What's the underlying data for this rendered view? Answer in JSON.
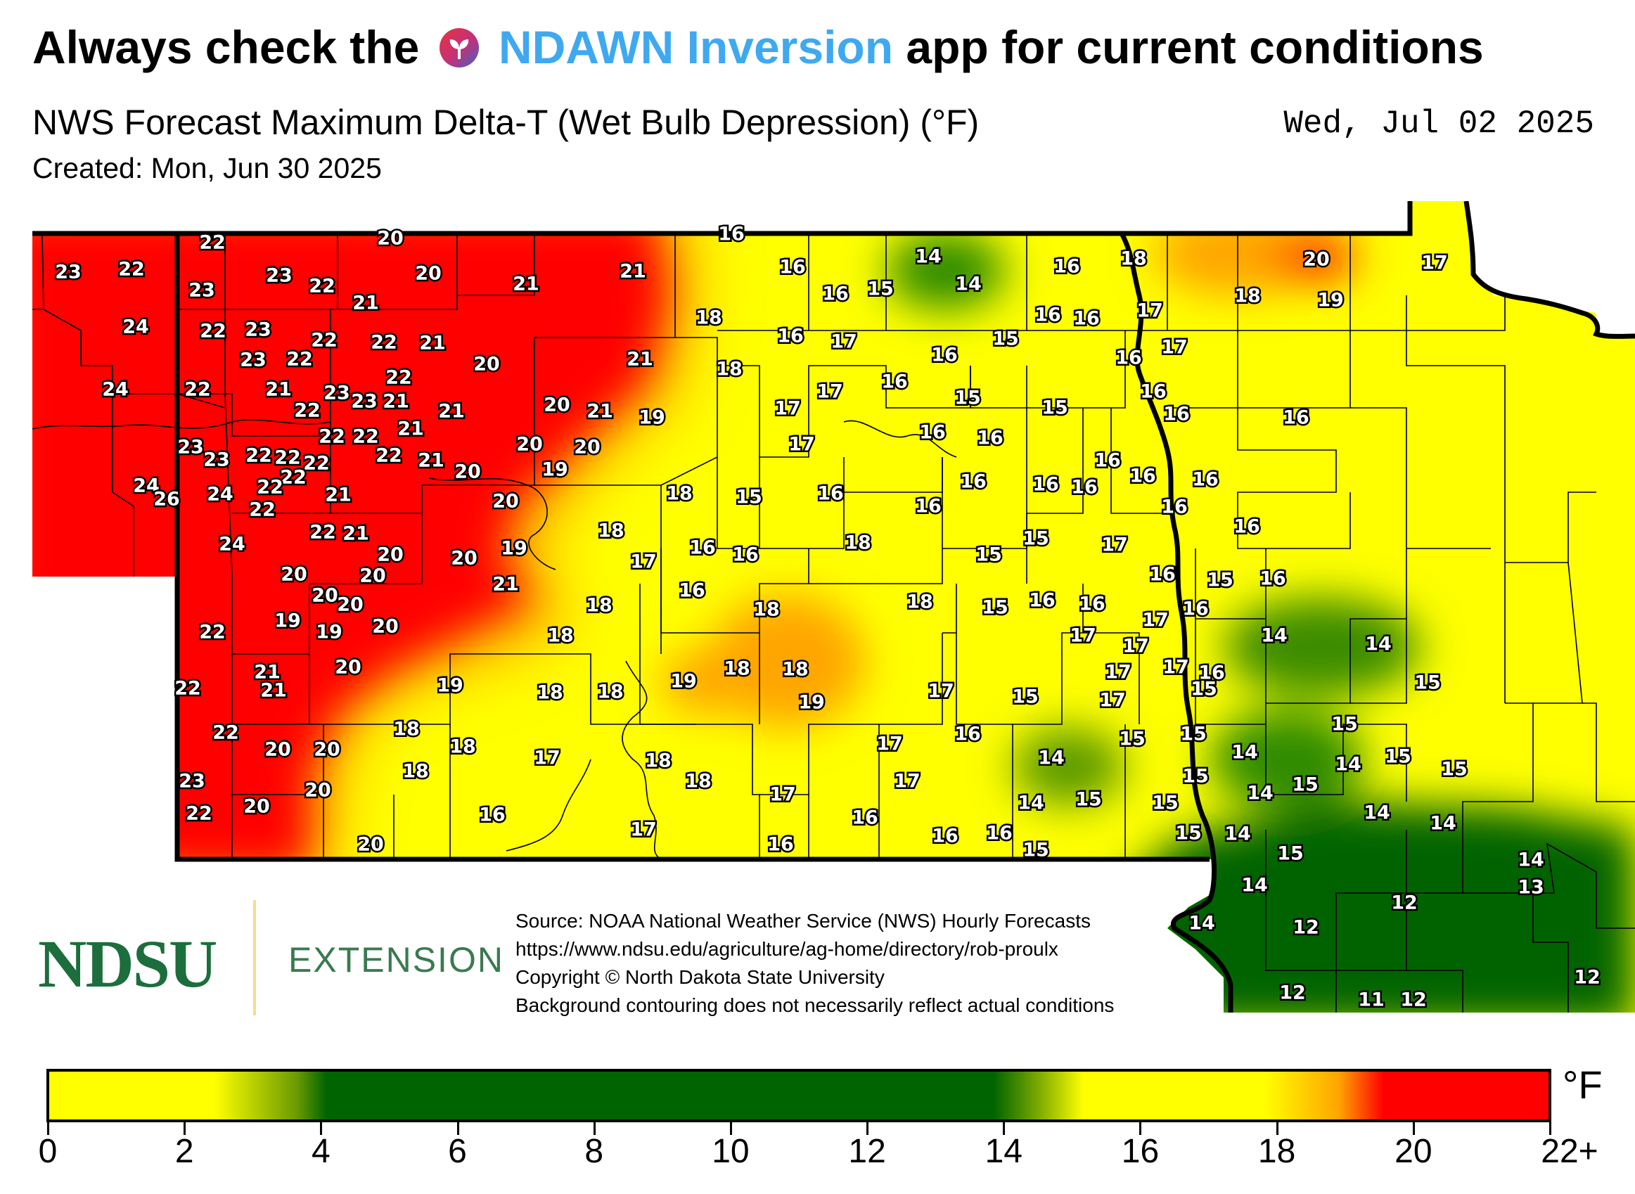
{
  "header": {
    "headline_before": "Always check the",
    "headline_app": "NDAWN Inversion",
    "headline_after": "app for current conditions",
    "app_icon": "sprout-icon",
    "app_color": "#3fa9f0",
    "subtitle": "NWS Forecast Maximum Delta-T (Wet Bulb Depression) (°F)",
    "valid_date": "Wed, Jul 02 2025",
    "created": "Created: Mon, Jun 30 2025"
  },
  "branding": {
    "logo_name": "NDSU",
    "logo_unit": "EXTENSION",
    "logo_color": "#1c6e3c"
  },
  "source_notes": [
    "Source: NOAA National Weather Service (NWS) Hourly Forecasts",
    "https://www.ndsu.edu/agriculture/ag-home/directory/rob-proulx",
    "Copyright © North Dakota State University",
    "Background contouring does not necessarily reflect actual conditions"
  ],
  "legend": {
    "unit": "°F",
    "ticks": [
      "0",
      "2",
      "4",
      "6",
      "8",
      "10",
      "12",
      "14",
      "16",
      "18",
      "20",
      "22+"
    ],
    "colors": {
      "low": "#ffff00",
      "mid": "#006400",
      "high": "#ff0000",
      "transition": "#ffa500"
    }
  },
  "map_labels": [
    [
      "23",
      97,
      388
    ],
    [
      "22",
      187,
      384
    ],
    [
      "22",
      302,
      346
    ],
    [
      "20",
      555,
      340
    ],
    [
      "16",
      1040,
      334
    ],
    [
      "23",
      287,
      414
    ],
    [
      "23",
      397,
      393
    ],
    [
      "22",
      458,
      408
    ],
    [
      "20",
      609,
      390
    ],
    [
      "21",
      748,
      405
    ],
    [
      "21",
      900,
      387
    ],
    [
      "14",
      1320,
      366
    ],
    [
      "16",
      1127,
      381
    ],
    [
      "16",
      1188,
      419
    ],
    [
      "15",
      1252,
      412
    ],
    [
      "14",
      1377,
      405
    ],
    [
      "18",
      1612,
      369
    ],
    [
      "16",
      1517,
      380
    ],
    [
      "20",
      1872,
      370
    ],
    [
      "17",
      2040,
      375
    ],
    [
      "24",
      193,
      466
    ],
    [
      "22",
      303,
      472
    ],
    [
      "23",
      367,
      470
    ],
    [
      "21",
      520,
      432
    ],
    [
      "18",
      1008,
      453
    ],
    [
      "17",
      1635,
      443
    ],
    [
      "18",
      1774,
      422
    ],
    [
      "19",
      1892,
      428
    ],
    [
      "16",
      1490,
      449
    ],
    [
      "16",
      1545,
      454
    ],
    [
      "22",
      461,
      485
    ],
    [
      "22",
      546,
      488
    ],
    [
      "21",
      615,
      489
    ],
    [
      "21",
      910,
      512
    ],
    [
      "16",
      1124,
      479
    ],
    [
      "17",
      1200,
      487
    ],
    [
      "15",
      1430,
      483
    ],
    [
      "17",
      1670,
      495
    ],
    [
      "23",
      360,
      513
    ],
    [
      "22",
      426,
      512
    ],
    [
      "20",
      692,
      519
    ],
    [
      "18",
      1037,
      526
    ],
    [
      "16",
      1343,
      506
    ],
    [
      "16",
      1605,
      510
    ],
    [
      "24",
      164,
      555
    ],
    [
      "22",
      281,
      555
    ],
    [
      "21",
      396,
      555
    ],
    [
      "23",
      479,
      560
    ],
    [
      "23",
      518,
      572
    ],
    [
      "21",
      563,
      572
    ],
    [
      "22",
      567,
      538
    ],
    [
      "22",
      437,
      585
    ],
    [
      "21",
      642,
      586
    ],
    [
      "20",
      792,
      577
    ],
    [
      "21",
      853,
      586
    ],
    [
      "19",
      927,
      595
    ],
    [
      "17",
      1180,
      558
    ],
    [
      "17",
      1120,
      582
    ],
    [
      "16",
      1272,
      544
    ],
    [
      "15",
      1376,
      567
    ],
    [
      "15",
      1500,
      581
    ],
    [
      "16",
      1640,
      558
    ],
    [
      "16",
      1673,
      590
    ],
    [
      "16",
      1843,
      595
    ],
    [
      "21",
      584,
      611
    ],
    [
      "22",
      472,
      622
    ],
    [
      "22",
      520,
      622
    ],
    [
      "23",
      271,
      637
    ],
    [
      "23",
      308,
      655
    ],
    [
      "22",
      368,
      649
    ],
    [
      "22",
      409,
      652
    ],
    [
      "22",
      450,
      660
    ],
    [
      "22",
      553,
      649
    ],
    [
      "21",
      613,
      656
    ],
    [
      "20",
      753,
      633
    ],
    [
      "20",
      835,
      637
    ],
    [
      "17",
      1140,
      633
    ],
    [
      "16",
      1326,
      616
    ],
    [
      "16",
      1408,
      624
    ],
    [
      "16",
      1575,
      656
    ],
    [
      "20",
      665,
      672
    ],
    [
      "19",
      789,
      669
    ],
    [
      "22",
      417,
      680
    ],
    [
      "24",
      208,
      692
    ],
    [
      "26",
      237,
      711
    ],
    [
      "24",
      313,
      704
    ],
    [
      "22",
      384,
      694
    ],
    [
      "22",
      373,
      726
    ],
    [
      "21",
      481,
      705
    ],
    [
      "20",
      719,
      714
    ],
    [
      "16",
      1384,
      686
    ],
    [
      "16",
      1487,
      690
    ],
    [
      "16",
      1542,
      694
    ],
    [
      "16",
      1625,
      678
    ],
    [
      "16",
      1714,
      683
    ],
    [
      "18",
      966,
      703
    ],
    [
      "15",
      1065,
      708
    ],
    [
      "16",
      1181,
      703
    ],
    [
      "16",
      1320,
      721
    ],
    [
      "16",
      1670,
      722
    ],
    [
      "22",
      459,
      758
    ],
    [
      "21",
      506,
      760
    ],
    [
      "18",
      869,
      756
    ],
    [
      "16",
      1773,
      750
    ],
    [
      "24",
      330,
      775
    ],
    [
      "20",
      555,
      790
    ],
    [
      "20",
      660,
      795
    ],
    [
      "19",
      731,
      781
    ],
    [
      "17",
      915,
      800
    ],
    [
      "16",
      999,
      780
    ],
    [
      "16",
      1060,
      790
    ],
    [
      "18",
      1220,
      773
    ],
    [
      "15",
      1473,
      767
    ],
    [
      "17",
      1585,
      776
    ],
    [
      "15",
      1406,
      790
    ],
    [
      "16",
      1653,
      818
    ],
    [
      "15",
      1735,
      826
    ],
    [
      "16",
      1810,
      824
    ],
    [
      "20",
      418,
      818
    ],
    [
      "20",
      530,
      820
    ],
    [
      "20",
      462,
      848
    ],
    [
      "21",
      719,
      832
    ],
    [
      "16",
      984,
      841
    ],
    [
      "18",
      1090,
      868
    ],
    [
      "18",
      1308,
      857
    ],
    [
      "15",
      1415,
      865
    ],
    [
      "16",
      1482,
      855
    ],
    [
      "16",
      1553,
      860
    ],
    [
      "17",
      1643,
      883
    ],
    [
      "17",
      1540,
      905
    ],
    [
      "16",
      1700,
      867
    ],
    [
      "20",
      498,
      861
    ],
    [
      "19",
      409,
      884
    ],
    [
      "19",
      468,
      900
    ],
    [
      "20",
      548,
      892
    ],
    [
      "18",
      852,
      862
    ],
    [
      "18",
      797,
      905
    ],
    [
      "22",
      302,
      900
    ],
    [
      "14",
      1812,
      905
    ],
    [
      "14",
      1960,
      917
    ],
    [
      "17",
      1615,
      920
    ],
    [
      "20",
      495,
      950
    ],
    [
      "21",
      380,
      957
    ],
    [
      "21",
      389,
      983
    ],
    [
      "22",
      267,
      980
    ],
    [
      "18",
      1048,
      952
    ],
    [
      "18",
      1131,
      953
    ],
    [
      "19",
      640,
      976
    ],
    [
      "18",
      782,
      986
    ],
    [
      "18",
      868,
      985
    ],
    [
      "19",
      972,
      970
    ],
    [
      "17",
      1590,
      957
    ],
    [
      "17",
      1672,
      950
    ],
    [
      "16",
      1723,
      958
    ],
    [
      "15",
      1712,
      981
    ],
    [
      "15",
      2030,
      972
    ],
    [
      "19",
      1154,
      1000
    ],
    [
      "17",
      1338,
      984
    ],
    [
      "15",
      1458,
      992
    ],
    [
      "17",
      1582,
      997
    ],
    [
      "18",
      578,
      1038
    ],
    [
      "22",
      321,
      1043
    ],
    [
      "20",
      465,
      1067
    ],
    [
      "20",
      395,
      1067
    ],
    [
      "18",
      658,
      1063
    ],
    [
      "17",
      778,
      1079
    ],
    [
      "18",
      936,
      1083
    ],
    [
      "16",
      1376,
      1045
    ],
    [
      "17",
      1265,
      1059
    ],
    [
      "14",
      1495,
      1079
    ],
    [
      "15",
      1610,
      1052
    ],
    [
      "15",
      1697,
      1045
    ],
    [
      "14",
      1770,
      1071
    ],
    [
      "15",
      1912,
      1031
    ],
    [
      "14",
      1917,
      1088
    ],
    [
      "15",
      1988,
      1077
    ],
    [
      "15",
      2068,
      1095
    ],
    [
      "23",
      273,
      1112
    ],
    [
      "18",
      591,
      1098
    ],
    [
      "18",
      993,
      1112
    ],
    [
      "17",
      1290,
      1112
    ],
    [
      "15",
      1700,
      1105
    ],
    [
      "20",
      452,
      1125
    ],
    [
      "22",
      283,
      1158
    ],
    [
      "20",
      365,
      1148
    ],
    [
      "16",
      700,
      1160
    ],
    [
      "17",
      1113,
      1131
    ],
    [
      "14",
      1466,
      1143
    ],
    [
      "15",
      1548,
      1138
    ],
    [
      "15",
      1657,
      1143
    ],
    [
      "14",
      1792,
      1129
    ],
    [
      "15",
      1856,
      1117
    ],
    [
      "14",
      1958,
      1157
    ],
    [
      "14",
      2052,
      1172
    ],
    [
      "17",
      915,
      1181
    ],
    [
      "16",
      1230,
      1164
    ],
    [
      "16",
      1344,
      1190
    ],
    [
      "16",
      1421,
      1186
    ],
    [
      "15",
      1690,
      1186
    ],
    [
      "14",
      1760,
      1187
    ],
    [
      "20",
      527,
      1202
    ],
    [
      "16",
      1110,
      1202
    ],
    [
      "15",
      1473,
      1210
    ],
    [
      "15",
      1835,
      1215
    ],
    [
      "14",
      2177,
      1224
    ],
    [
      "14",
      1784,
      1260
    ],
    [
      "13",
      2177,
      1263
    ],
    [
      "12",
      1997,
      1285
    ],
    [
      "14",
      1709,
      1314
    ],
    [
      "12",
      1857,
      1320
    ],
    [
      "12",
      2257,
      1391
    ],
    [
      "12",
      1838,
      1413
    ],
    [
      "11",
      1950,
      1423
    ],
    [
      "12",
      2010,
      1423
    ]
  ]
}
